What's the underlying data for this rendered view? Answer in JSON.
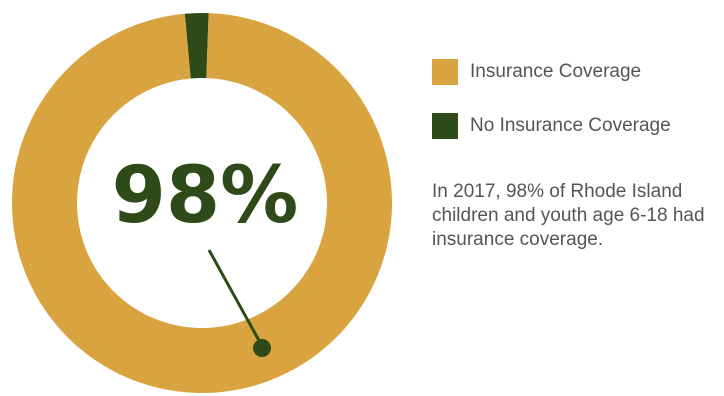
{
  "chart_data": {
    "type": "pie",
    "categories": [
      "Insurance Coverage",
      "No Insurance Coverage"
    ],
    "values": [
      98,
      2
    ],
    "colors": [
      "#D9A440",
      "#2E4A18"
    ],
    "center_label": "98%"
  },
  "legend": {
    "items": [
      {
        "label": "Insurance Coverage",
        "color": "#D9A440"
      },
      {
        "label": "No Insurance Coverage",
        "color": "#2E4A18"
      }
    ]
  },
  "caption": "In 2017, 98% of Rhode Island children and youth age 6-18 had insurance coverage.",
  "colors": {
    "accent": "#D9A440",
    "dark": "#2E4A18",
    "text": "#555555"
  }
}
